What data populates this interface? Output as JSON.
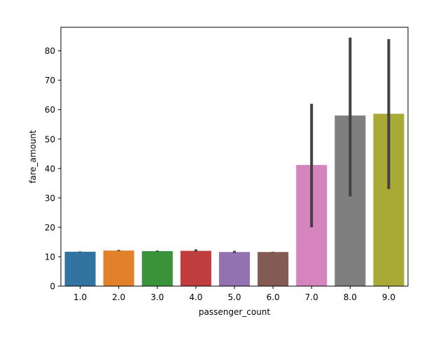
{
  "chart_data": {
    "type": "bar",
    "xlabel": "passenger_count",
    "ylabel": "fare_amount",
    "categories": [
      "1.0",
      "2.0",
      "3.0",
      "4.0",
      "5.0",
      "6.0",
      "7.0",
      "8.0",
      "9.0"
    ],
    "values": [
      11.7,
      12.1,
      11.9,
      12.0,
      11.6,
      11.6,
      41.2,
      58.0,
      58.6
    ],
    "error_low": [
      11.6,
      11.9,
      11.7,
      11.7,
      11.3,
      11.5,
      20.0,
      30.5,
      33.0
    ],
    "error_high": [
      11.8,
      12.3,
      12.1,
      12.5,
      12.0,
      11.7,
      62.0,
      84.5,
      84.0
    ],
    "colors": [
      "#3274a1",
      "#e1812c",
      "#3a923a",
      "#c03d3e",
      "#9372b2",
      "#845b53",
      "#d684bd",
      "#7f7f7f",
      "#a9aa35"
    ],
    "error_color": "#424242",
    "ylim": [
      0,
      88
    ],
    "yticks": [
      0,
      10,
      20,
      30,
      40,
      50,
      60,
      70,
      80
    ],
    "grid": false,
    "legend": "none"
  }
}
